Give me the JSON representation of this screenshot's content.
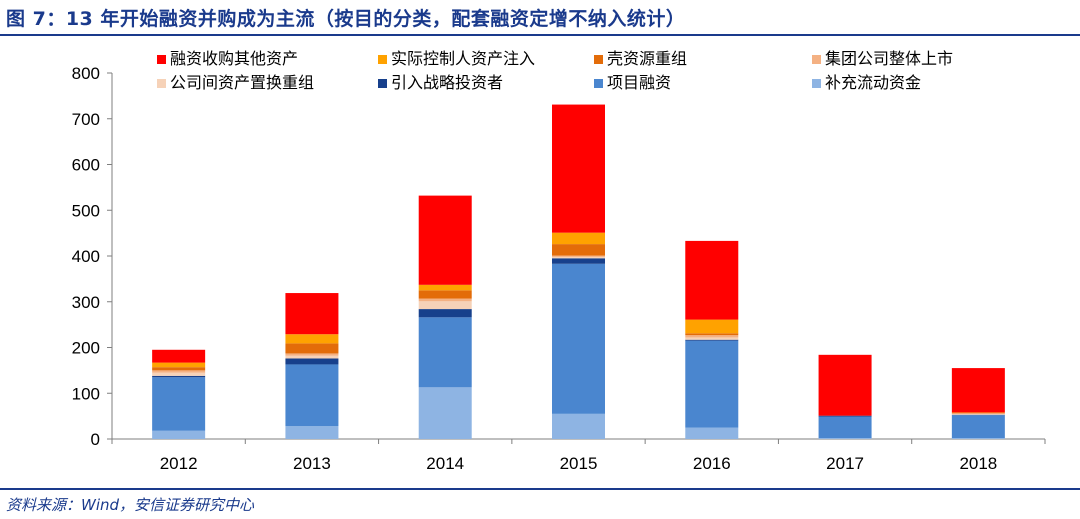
{
  "figure_title": "图 7：13 年开始融资并购成为主流（按目的分类，配套融资定增不纳入统计）",
  "source_note": "资料来源：Wind，安信证券研究中心",
  "chart_data": {
    "type": "bar",
    "stacked": true,
    "categories": [
      "2012",
      "2013",
      "2014",
      "2015",
      "2016",
      "2017",
      "2018"
    ],
    "ylim": [
      0,
      800
    ],
    "yticks": [
      0,
      100,
      200,
      300,
      400,
      500,
      600,
      700,
      800
    ],
    "grid": false,
    "legend_position": "top",
    "series": [
      {
        "name": "补充流动资金",
        "color": "#8eb4e3",
        "values": [
          18,
          28,
          113,
          55,
          25,
          2,
          2
        ]
      },
      {
        "name": "项目融资",
        "color": "#4a86cf",
        "values": [
          117,
          135,
          153,
          328,
          190,
          47,
          50
        ]
      },
      {
        "name": "引入战略投资者",
        "color": "#17408c",
        "values": [
          3,
          13,
          18,
          12,
          2,
          2,
          1
        ]
      },
      {
        "name": "公司间资产置换重组",
        "color": "#f6d2b8",
        "values": [
          7,
          6,
          17,
          3,
          5,
          0,
          2
        ]
      },
      {
        "name": "集团公司整体上市",
        "color": "#f4b183",
        "values": [
          5,
          5,
          6,
          3,
          5,
          0,
          1
        ]
      },
      {
        "name": "壳资源重组",
        "color": "#e36c09",
        "values": [
          7,
          22,
          18,
          25,
          4,
          0,
          1
        ]
      },
      {
        "name": "实际控制人资产注入",
        "color": "#ffa200",
        "values": [
          10,
          20,
          12,
          25,
          30,
          0,
          1
        ]
      },
      {
        "name": "融资收购其他资产",
        "color": "#ff0000",
        "values": [
          28,
          90,
          195,
          280,
          172,
          133,
          97
        ]
      }
    ]
  }
}
